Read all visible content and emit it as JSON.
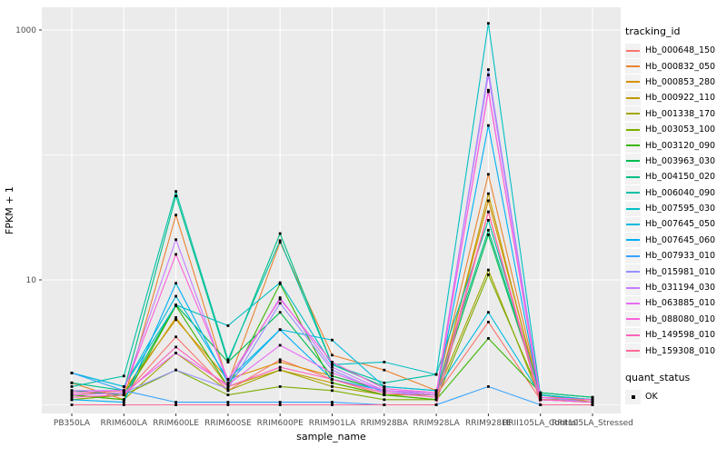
{
  "chart": {
    "y_axis_title": "FPKM + 1",
    "x_axis_title": "sample_name",
    "y_tick_labels": [
      "1000",
      "10"
    ]
  },
  "legend": {
    "tracking_title": "tracking_id",
    "quant_title": "quant_status",
    "quant_items": [
      {
        "label": "OK"
      }
    ]
  },
  "chart_data": {
    "type": "line",
    "title": "",
    "xlabel": "sample_name",
    "ylabel": "FPKM + 1",
    "y_scale": "log10",
    "y_ticks": [
      1000,
      10
    ],
    "y_minor_gridlines": [
      100,
      1
    ],
    "ylim": [
      0.85,
      1600
    ],
    "legend_position": "right",
    "grid": true,
    "panel_background": "#EBEBEB",
    "gridline_color": "#FFFFFF",
    "point_color": "#000000",
    "tick_label_color": "#4D4D4D",
    "categories": [
      "PB350LA",
      "RRIM600LA",
      "RRIM600LE",
      "RRIM600SE",
      "RRIM600PE",
      "RRIM901LA",
      "RRIM928BA",
      "RRIM928LA",
      "RRIM928LE",
      "RRII105LA_Control",
      "RRII105LA_Stressed"
    ],
    "quant_status": "OK",
    "series": [
      {
        "name": "Hb_000648_150",
        "color": "#F8766D",
        "values": [
          1.3,
          1.2,
          3.5,
          1.3,
          2.3,
          1.6,
          1.2,
          1.2,
          4.6,
          1.1,
          1.1
        ]
      },
      {
        "name": "Hb_000832_050",
        "color": "#EA8331",
        "values": [
          1.5,
          1.1,
          33.0,
          1.5,
          20.0,
          2.5,
          1.9,
          1.3,
          70.0,
          1.2,
          1.1
        ]
      },
      {
        "name": "Hb_000853_280",
        "color": "#D89000",
        "values": [
          1.2,
          1.3,
          4.8,
          1.6,
          2.2,
          1.7,
          1.3,
          1.2,
          43.0,
          1.2,
          1.05
        ]
      },
      {
        "name": "Hb_000922_110",
        "color": "#C09B00",
        "values": [
          1.1,
          1.2,
          5.0,
          1.4,
          1.9,
          1.5,
          1.2,
          1.1,
          49.0,
          1.1,
          1.05
        ]
      },
      {
        "name": "Hb_001338_170",
        "color": "#A3A500",
        "values": [
          1.2,
          1.1,
          2.6,
          1.3,
          1.9,
          1.4,
          1.2,
          1.2,
          12.0,
          1.1,
          1.1
        ]
      },
      {
        "name": "Hb_003053_100",
        "color": "#7CAE00",
        "values": [
          1.1,
          1.2,
          1.9,
          1.2,
          1.4,
          1.3,
          1.1,
          1.1,
          11.0,
          1.2,
          1.1
        ]
      },
      {
        "name": "Hb_003120_090",
        "color": "#39B600",
        "values": [
          1.2,
          1.1,
          6.2,
          1.4,
          9.3,
          1.5,
          1.2,
          1.1,
          3.4,
          1.25,
          1.15
        ]
      },
      {
        "name": "Hb_003963_030",
        "color": "#00BB4E",
        "values": [
          1.3,
          1.2,
          6.3,
          2.2,
          5.5,
          1.7,
          1.3,
          1.2,
          23.0,
          1.2,
          1.1
        ]
      },
      {
        "name": "Hb_004150_020",
        "color": "#00C087",
        "values": [
          1.5,
          1.3,
          47.0,
          2.2,
          23.5,
          2.1,
          1.4,
          1.3,
          25.0,
          1.25,
          1.15
        ]
      },
      {
        "name": "Hb_006040_090",
        "color": "#00C1A7",
        "values": [
          1.4,
          1.7,
          51.0,
          2.3,
          20.6,
          2.1,
          1.5,
          1.75,
          30.0,
          1.2,
          1.1
        ]
      },
      {
        "name": "Hb_007595_030",
        "color": "#00BFC4",
        "values": [
          1.8,
          1.4,
          6.3,
          4.3,
          9.5,
          2.1,
          2.2,
          1.75,
          1130,
          1.2,
          1.1
        ]
      },
      {
        "name": "Hb_007645_050",
        "color": "#00BAE0",
        "values": [
          1.8,
          1.4,
          7.4,
          1.6,
          4.0,
          3.3,
          1.4,
          1.3,
          5.5,
          1.2,
          1.1
        ]
      },
      {
        "name": "Hb_007645_060",
        "color": "#00B0F6",
        "values": [
          1.1,
          1.05,
          9.4,
          1.5,
          4.0,
          1.6,
          1.3,
          1.2,
          172,
          1.1,
          1.05
        ]
      },
      {
        "name": "Hb_007933_010",
        "color": "#35A2FF",
        "values": [
          1.8,
          1.3,
          1.05,
          1.05,
          1.05,
          1.05,
          1.0,
          1.0,
          1.4,
          1.0,
          1.0
        ]
      },
      {
        "name": "Hb_015981_010",
        "color": "#9590FF",
        "values": [
          1.2,
          1.25,
          1.9,
          1.35,
          6.5,
          1.9,
          1.25,
          1.2,
          482,
          1.15,
          1.05
        ]
      },
      {
        "name": "Hb_031194_030",
        "color": "#C77CFF",
        "values": [
          1.3,
          1.3,
          21.0,
          1.5,
          7.2,
          2.0,
          1.3,
          1.25,
          437,
          1.1,
          1.05
        ]
      },
      {
        "name": "Hb_063885_010",
        "color": "#E76BF3",
        "values": [
          1.2,
          1.25,
          2.6,
          1.45,
          3.0,
          1.8,
          1.3,
          1.2,
          330,
          1.1,
          1.05
        ]
      },
      {
        "name": "Hb_088080_010",
        "color": "#FA62DB",
        "values": [
          1.25,
          1.3,
          16.0,
          1.6,
          7.0,
          2.2,
          1.35,
          1.25,
          320,
          1.15,
          1.1
        ]
      },
      {
        "name": "Hb_149598_010",
        "color": "#FF62BC",
        "values": [
          1.15,
          1.2,
          2.9,
          1.4,
          2.0,
          1.6,
          1.25,
          1.15,
          35.0,
          1.1,
          1.05
        ]
      },
      {
        "name": "Hb_159308_010",
        "color": "#FF6A98",
        "values": [
          1.0,
          1.0,
          1.0,
          1.0,
          1.0,
          1.0,
          1.0,
          1.0,
          35.0,
          1.0,
          1.0
        ]
      }
    ]
  }
}
